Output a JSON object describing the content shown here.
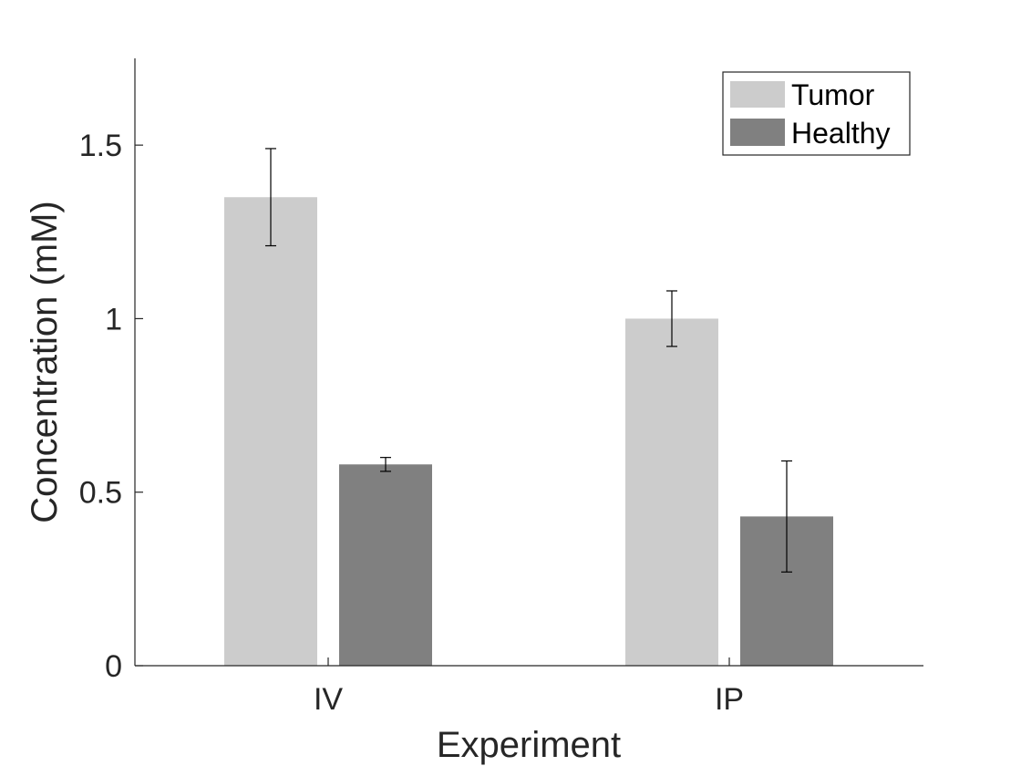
{
  "chart_data": {
    "type": "bar",
    "title": "",
    "xlabel": "Experiment",
    "ylabel": "Concentration (mM)",
    "categories": [
      "IV",
      "IP"
    ],
    "ylim": [
      0,
      1.75
    ],
    "yticks": [
      0,
      0.5,
      1,
      1.5
    ],
    "ytick_labels": [
      "0",
      "0.5",
      "1",
      "1.5"
    ],
    "grid": false,
    "legend_position": "top-right",
    "series": [
      {
        "name": "Tumor",
        "color": "#cccccc",
        "values": [
          1.35,
          1.0
        ],
        "error": [
          [
            1.21,
            1.49
          ],
          [
            0.92,
            1.08
          ]
        ]
      },
      {
        "name": "Healthy",
        "color": "#808080",
        "values": [
          0.58,
          0.43
        ],
        "error": [
          [
            0.56,
            0.6
          ],
          [
            0.27,
            0.59
          ]
        ]
      }
    ]
  }
}
